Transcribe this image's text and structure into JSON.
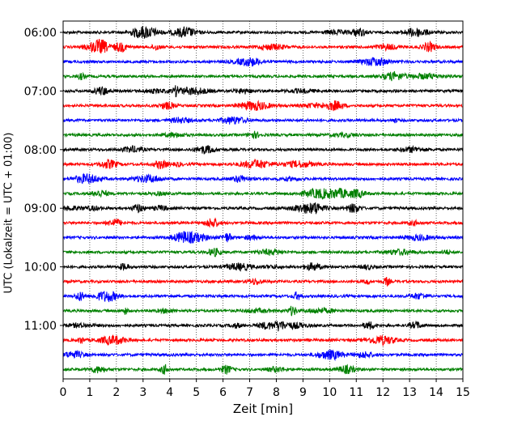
{
  "chart_data": {
    "type": "line",
    "plot_kind": "helicorder",
    "xlabel": "Zeit  [min]",
    "ylabel": "UTC (Lokalzeit = UTC + 01:00)",
    "xlim": [
      0,
      15
    ],
    "x_ticks": [
      "0",
      "1",
      "2",
      "3",
      "4",
      "5",
      "6",
      "7",
      "8",
      "9",
      "10",
      "11",
      "12",
      "13",
      "14",
      "15"
    ],
    "y_tick_labels": [
      "06:00",
      "07:00",
      "08:00",
      "09:00",
      "10:00",
      "11:00"
    ],
    "grid": "vertical dotted lines at each minute",
    "minutes_per_trace": 15,
    "trace_start_times": [
      "06:00",
      "06:15",
      "06:30",
      "06:45",
      "07:00",
      "07:15",
      "07:30",
      "07:45",
      "08:00",
      "08:15",
      "08:30",
      "08:45",
      "09:00",
      "09:15",
      "09:30",
      "09:45",
      "10:00",
      "10:15",
      "10:30",
      "10:45",
      "11:00",
      "11:15",
      "11:30",
      "11:45"
    ],
    "trace_color_cycle": [
      "#000000",
      "#ff0000",
      "#0000ff",
      "#008000"
    ],
    "legend": "none"
  }
}
